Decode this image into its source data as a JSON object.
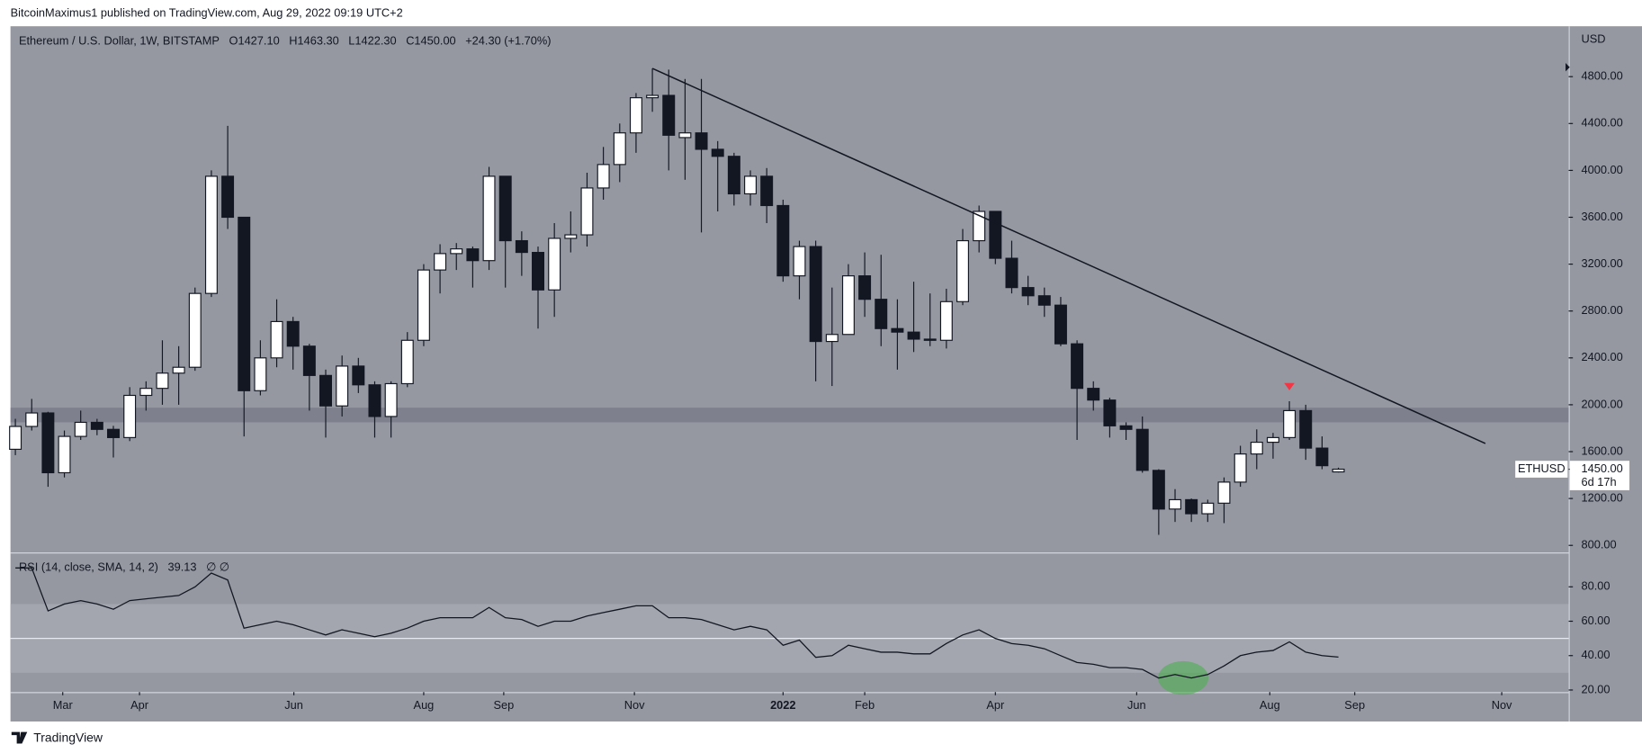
{
  "header": {
    "publisher": "BitcoinMaximus1 published on TradingView.com, Aug 29, 2022 09:19 UTC+2"
  },
  "chart_data": {
    "type": "candlestick",
    "title": "Ethereum / U.S. Dollar, 1W, BITSTAMP",
    "ohlc_legend": [
      "O1427.10",
      "H1463.30",
      "L1422.30",
      "C1450.00",
      "+24.30 (+1.70%)"
    ],
    "currency": "USD",
    "open": [
      1620,
      1815,
      1930,
      1420,
      1730,
      1850,
      1790,
      1720,
      2080,
      2140,
      2270,
      2320,
      2950,
      3950,
      3600,
      2120,
      2400,
      2710,
      2500,
      2250,
      1990,
      2330,
      2170,
      1900,
      2180,
      2550,
      3150,
      3290,
      3330,
      3230,
      3950,
      3400,
      3300,
      2980,
      3420,
      3450,
      3850,
      4050,
      4320,
      4620,
      4640,
      4280,
      4320,
      4180,
      4120,
      3800,
      3950,
      3700,
      3100,
      3350,
      2540,
      2600,
      3100,
      2900,
      2650,
      2620,
      2560,
      2550,
      2880,
      3400,
      3650,
      3250,
      3000,
      2930,
      2850,
      2520,
      2140,
      2040,
      1820,
      1790,
      1440,
      1110,
      1190,
      1070,
      1160,
      1340,
      1580,
      1680,
      1720,
      1950,
      1630,
      1427.1
    ],
    "high": [
      1880,
      2050,
      1940,
      1780,
      1950,
      1880,
      1820,
      2150,
      2200,
      2550,
      2500,
      3000,
      4000,
      4380,
      3600,
      2550,
      2900,
      2750,
      2520,
      2300,
      2420,
      2400,
      2200,
      2200,
      2620,
      3200,
      3370,
      3380,
      3350,
      4030,
      3950,
      3480,
      3350,
      3550,
      3650,
      3980,
      4200,
      4400,
      4660,
      4870,
      4860,
      4780,
      4780,
      4250,
      4150,
      4000,
      4020,
      3750,
      3400,
      3400,
      3000,
      3200,
      3300,
      3280,
      2900,
      3050,
      2950,
      2990,
      3500,
      3700,
      3650,
      3400,
      3100,
      3000,
      2920,
      2550,
      2200,
      2060,
      1850,
      1900,
      1450,
      1280,
      1200,
      1190,
      1380,
      1650,
      1790,
      1760,
      2030,
      2000,
      1730,
      1463.3
    ],
    "low": [
      1570,
      1780,
      1300,
      1380,
      1700,
      1740,
      1550,
      1690,
      1950,
      2000,
      2000,
      2290,
      2920,
      3500,
      1730,
      2080,
      2320,
      2300,
      1950,
      1720,
      1900,
      2100,
      1720,
      1720,
      2150,
      2500,
      2950,
      3150,
      3000,
      3150,
      3000,
      3100,
      2650,
      2750,
      3300,
      3350,
      3750,
      3900,
      4150,
      4500,
      4000,
      3920,
      3470,
      3650,
      3700,
      3700,
      3550,
      3050,
      2900,
      2200,
      2160,
      2600,
      2750,
      2500,
      2300,
      2450,
      2500,
      2480,
      2850,
      3300,
      3200,
      2950,
      2850,
      2750,
      2500,
      1700,
      1950,
      1720,
      1700,
      1420,
      890,
      1000,
      1000,
      1000,
      990,
      1300,
      1450,
      1540,
      1700,
      1530,
      1450,
      1422.3
    ],
    "close": [
      1815,
      1930,
      1420,
      1730,
      1850,
      1790,
      1720,
      2080,
      2140,
      2270,
      2320,
      2950,
      3950,
      3600,
      2120,
      2400,
      2710,
      2500,
      2250,
      1990,
      2330,
      2170,
      1900,
      2180,
      2550,
      3150,
      3290,
      3330,
      3230,
      3950,
      3400,
      3300,
      2980,
      3420,
      3450,
      3850,
      4050,
      4320,
      4620,
      4640,
      4300,
      4320,
      4180,
      4120,
      3800,
      3950,
      3700,
      3100,
      3350,
      2540,
      2600,
      3100,
      2900,
      2650,
      2620,
      2560,
      2550,
      2880,
      3400,
      3650,
      3250,
      3000,
      2930,
      2850,
      2520,
      2140,
      2040,
      1820,
      1790,
      1440,
      1110,
      1190,
      1070,
      1160,
      1340,
      1580,
      1680,
      1720,
      1950,
      1630,
      1480,
      1450
    ],
    "up_color": "#ffffff",
    "down_color": "#131722",
    "xlim": [
      -0.3,
      95.1
    ],
    "xticks": [
      {
        "value": 2.9,
        "label": "Mar"
      },
      {
        "value": 7.6,
        "label": "Apr"
      },
      {
        "value": 17.05,
        "label": "Jun"
      },
      {
        "value": 25,
        "label": "Aug"
      },
      {
        "value": 29.9,
        "label": "Sep"
      },
      {
        "value": 37.9,
        "label": "Nov"
      },
      {
        "value": 47,
        "label": "2022"
      },
      {
        "value": 52,
        "label": "Feb"
      },
      {
        "value": 60,
        "label": "Apr"
      },
      {
        "value": 68.65,
        "label": "Jun"
      },
      {
        "value": 76.8,
        "label": "Aug"
      },
      {
        "value": 82,
        "label": "Sep"
      },
      {
        "value": 91,
        "label": "Nov"
      }
    ],
    "ylim": [
      740,
      5230
    ],
    "yticks": [
      {
        "value": 800,
        "label": "800.00"
      },
      {
        "value": 1200,
        "label": "1200.00"
      },
      {
        "value": 1600,
        "label": "1600.00"
      },
      {
        "value": 2000,
        "label": "2000.00"
      },
      {
        "value": 2400,
        "label": "2400.00"
      },
      {
        "value": 2800,
        "label": "2800.00"
      },
      {
        "value": 3200,
        "label": "3200.00"
      },
      {
        "value": 3600,
        "label": "3600.00"
      },
      {
        "value": 4000,
        "label": "4000.00"
      },
      {
        "value": 4400,
        "label": "4400.00"
      },
      {
        "value": 4800,
        "label": "4800.00"
      }
    ],
    "zone": [
      1850,
      1975
    ],
    "trendline": {
      "x": [
        39,
        90
      ],
      "y": [
        4870,
        1670
      ]
    },
    "marker": {
      "x": 78,
      "y": 2150,
      "color": "#f23645"
    },
    "last_price": {
      "symbol": "ETHUSD",
      "value": 1450,
      "label": "1450.00",
      "countdown": "6d 17h"
    },
    "rsi": {
      "label": "RSI (14, close, SMA, 14, 2)",
      "last_label": "39.13",
      "extra": "∅ ∅",
      "values": [
        91,
        91,
        66,
        70,
        72,
        70,
        67,
        72,
        73,
        74,
        75,
        80,
        88,
        84,
        56,
        58,
        60,
        58,
        55,
        52,
        55,
        53,
        51,
        53,
        56,
        60,
        62,
        62,
        62,
        68,
        62,
        61,
        57,
        60,
        60,
        63,
        65,
        67,
        69,
        69,
        62,
        62,
        61,
        58,
        55,
        57,
        55,
        46,
        49,
        39,
        40,
        46,
        44,
        42,
        42,
        41,
        41,
        47,
        52,
        55,
        50,
        47,
        46,
        44,
        40,
        36,
        35,
        33,
        33,
        32,
        27,
        29,
        27,
        29,
        34,
        40,
        42,
        43,
        48,
        42,
        40,
        39.13
      ],
      "ylim": [
        19.4,
        99.4
      ],
      "yticks": [
        {
          "value": 20,
          "label": "20.00"
        },
        {
          "value": 40,
          "label": "40.00"
        },
        {
          "value": 60,
          "label": "60.00"
        },
        {
          "value": 80,
          "label": "80.00"
        }
      ],
      "band": [
        30,
        70
      ],
      "midline": 50,
      "highlight": {
        "x": 71.5,
        "y": 27
      }
    }
  },
  "footer": {
    "brand": "TradingView"
  }
}
